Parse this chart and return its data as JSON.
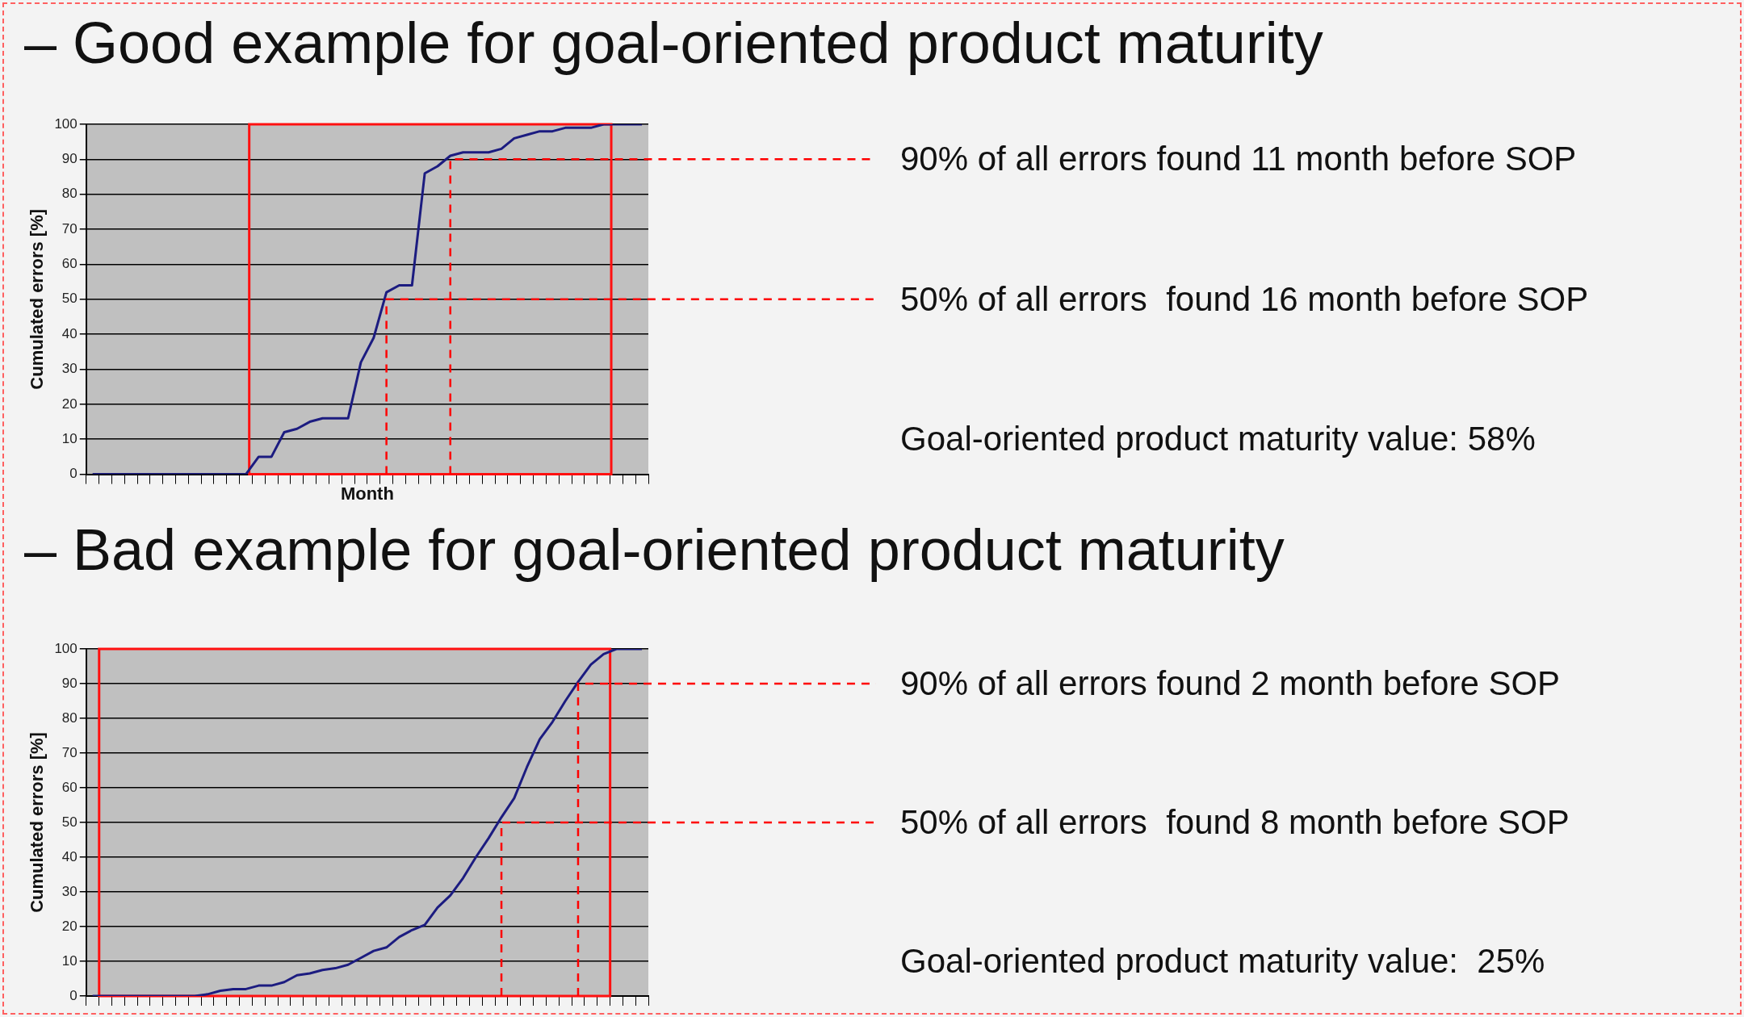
{
  "chart_data": [
    {
      "type": "line",
      "title": "– Good example for goal-oriented product maturity",
      "xlabel": "Month",
      "ylabel": "Cumulated errors [%]",
      "categories": [
        null,
        null,
        null,
        null,
        null,
        null,
        null,
        null,
        null,
        null,
        null,
        null,
        null,
        null,
        null,
        null,
        null,
        null,
        null,
        null,
        null,
        null,
        null,
        null,
        null,
        null,
        null,
        null,
        null,
        null,
        null,
        null,
        null,
        null,
        null,
        null,
        null,
        null,
        null,
        null,
        null,
        null,
        null,
        null
      ],
      "series": [
        {
          "color": "#1c1c80",
          "values": [
            0,
            0,
            0,
            0,
            0,
            0,
            0,
            0,
            0,
            0,
            0,
            0,
            0,
            5,
            5,
            12,
            13,
            15,
            16,
            16,
            16,
            32,
            39,
            52,
            54,
            54,
            86,
            88,
            91,
            92,
            92,
            92,
            93,
            96,
            97,
            98,
            98,
            99,
            99,
            99,
            100,
            100,
            100,
            100
          ]
        }
      ],
      "ylim": [
        0,
        100
      ],
      "yticks": [
        0,
        10,
        20,
        30,
        40,
        50,
        60,
        70,
        80,
        90,
        100
      ],
      "grid": "y",
      "tick_labels": "y",
      "ref_lines": [
        {
          "axis": "y",
          "value": 90,
          "color": "#ff0000",
          "line_style": "dashed"
        },
        {
          "axis": "y",
          "value": 50,
          "color": "#ff0000",
          "line_style": "dashed"
        }
      ],
      "annotations": [
        "90% of all errors found 11 month before SOP",
        "50% of all errors  found 16 month before SOP",
        "Goal-oriented product maturity value: 58%"
      ]
    },
    {
      "type": "line",
      "title": "– Bad example for goal-oriented product maturity",
      "ylabel": "Cumulated errors [%]",
      "categories": [
        null,
        null,
        null,
        null,
        null,
        null,
        null,
        null,
        null,
        null,
        null,
        null,
        null,
        null,
        null,
        null,
        null,
        null,
        null,
        null,
        null,
        null,
        null,
        null,
        null,
        null,
        null,
        null,
        null,
        null,
        null,
        null,
        null,
        null,
        null,
        null,
        null,
        null,
        null,
        null,
        null,
        null,
        null,
        null
      ],
      "series": [
        {
          "color": "#1c1c80",
          "values": [
            0,
            0,
            0,
            0,
            0,
            0,
            0,
            0,
            0,
            0.5,
            1.5,
            2,
            2,
            3,
            3,
            4,
            6,
            6.5,
            7.5,
            8,
            9,
            11,
            13,
            14,
            17,
            19,
            20.5,
            25.5,
            29,
            34,
            40,
            45.5,
            51.5,
            57,
            66,
            74,
            79,
            85,
            90.5,
            95.5,
            98.5,
            100,
            100,
            100
          ]
        }
      ],
      "ylim": [
        0,
        100
      ],
      "yticks": [
        0,
        10,
        20,
        30,
        40,
        50,
        60,
        70,
        80,
        90,
        100
      ],
      "grid": "y",
      "tick_labels": "y",
      "ref_lines": [
        {
          "axis": "y",
          "value": 90,
          "color": "#ff0000",
          "line_style": "dashed"
        },
        {
          "axis": "y",
          "value": 50,
          "color": "#ff0000",
          "line_style": "dashed"
        }
      ],
      "annotations": [
        "90% of all errors found 2 month before SOP",
        "50% of all errors  found 8 month before SOP",
        "Goal-oriented product maturity value:  25%"
      ]
    }
  ]
}
